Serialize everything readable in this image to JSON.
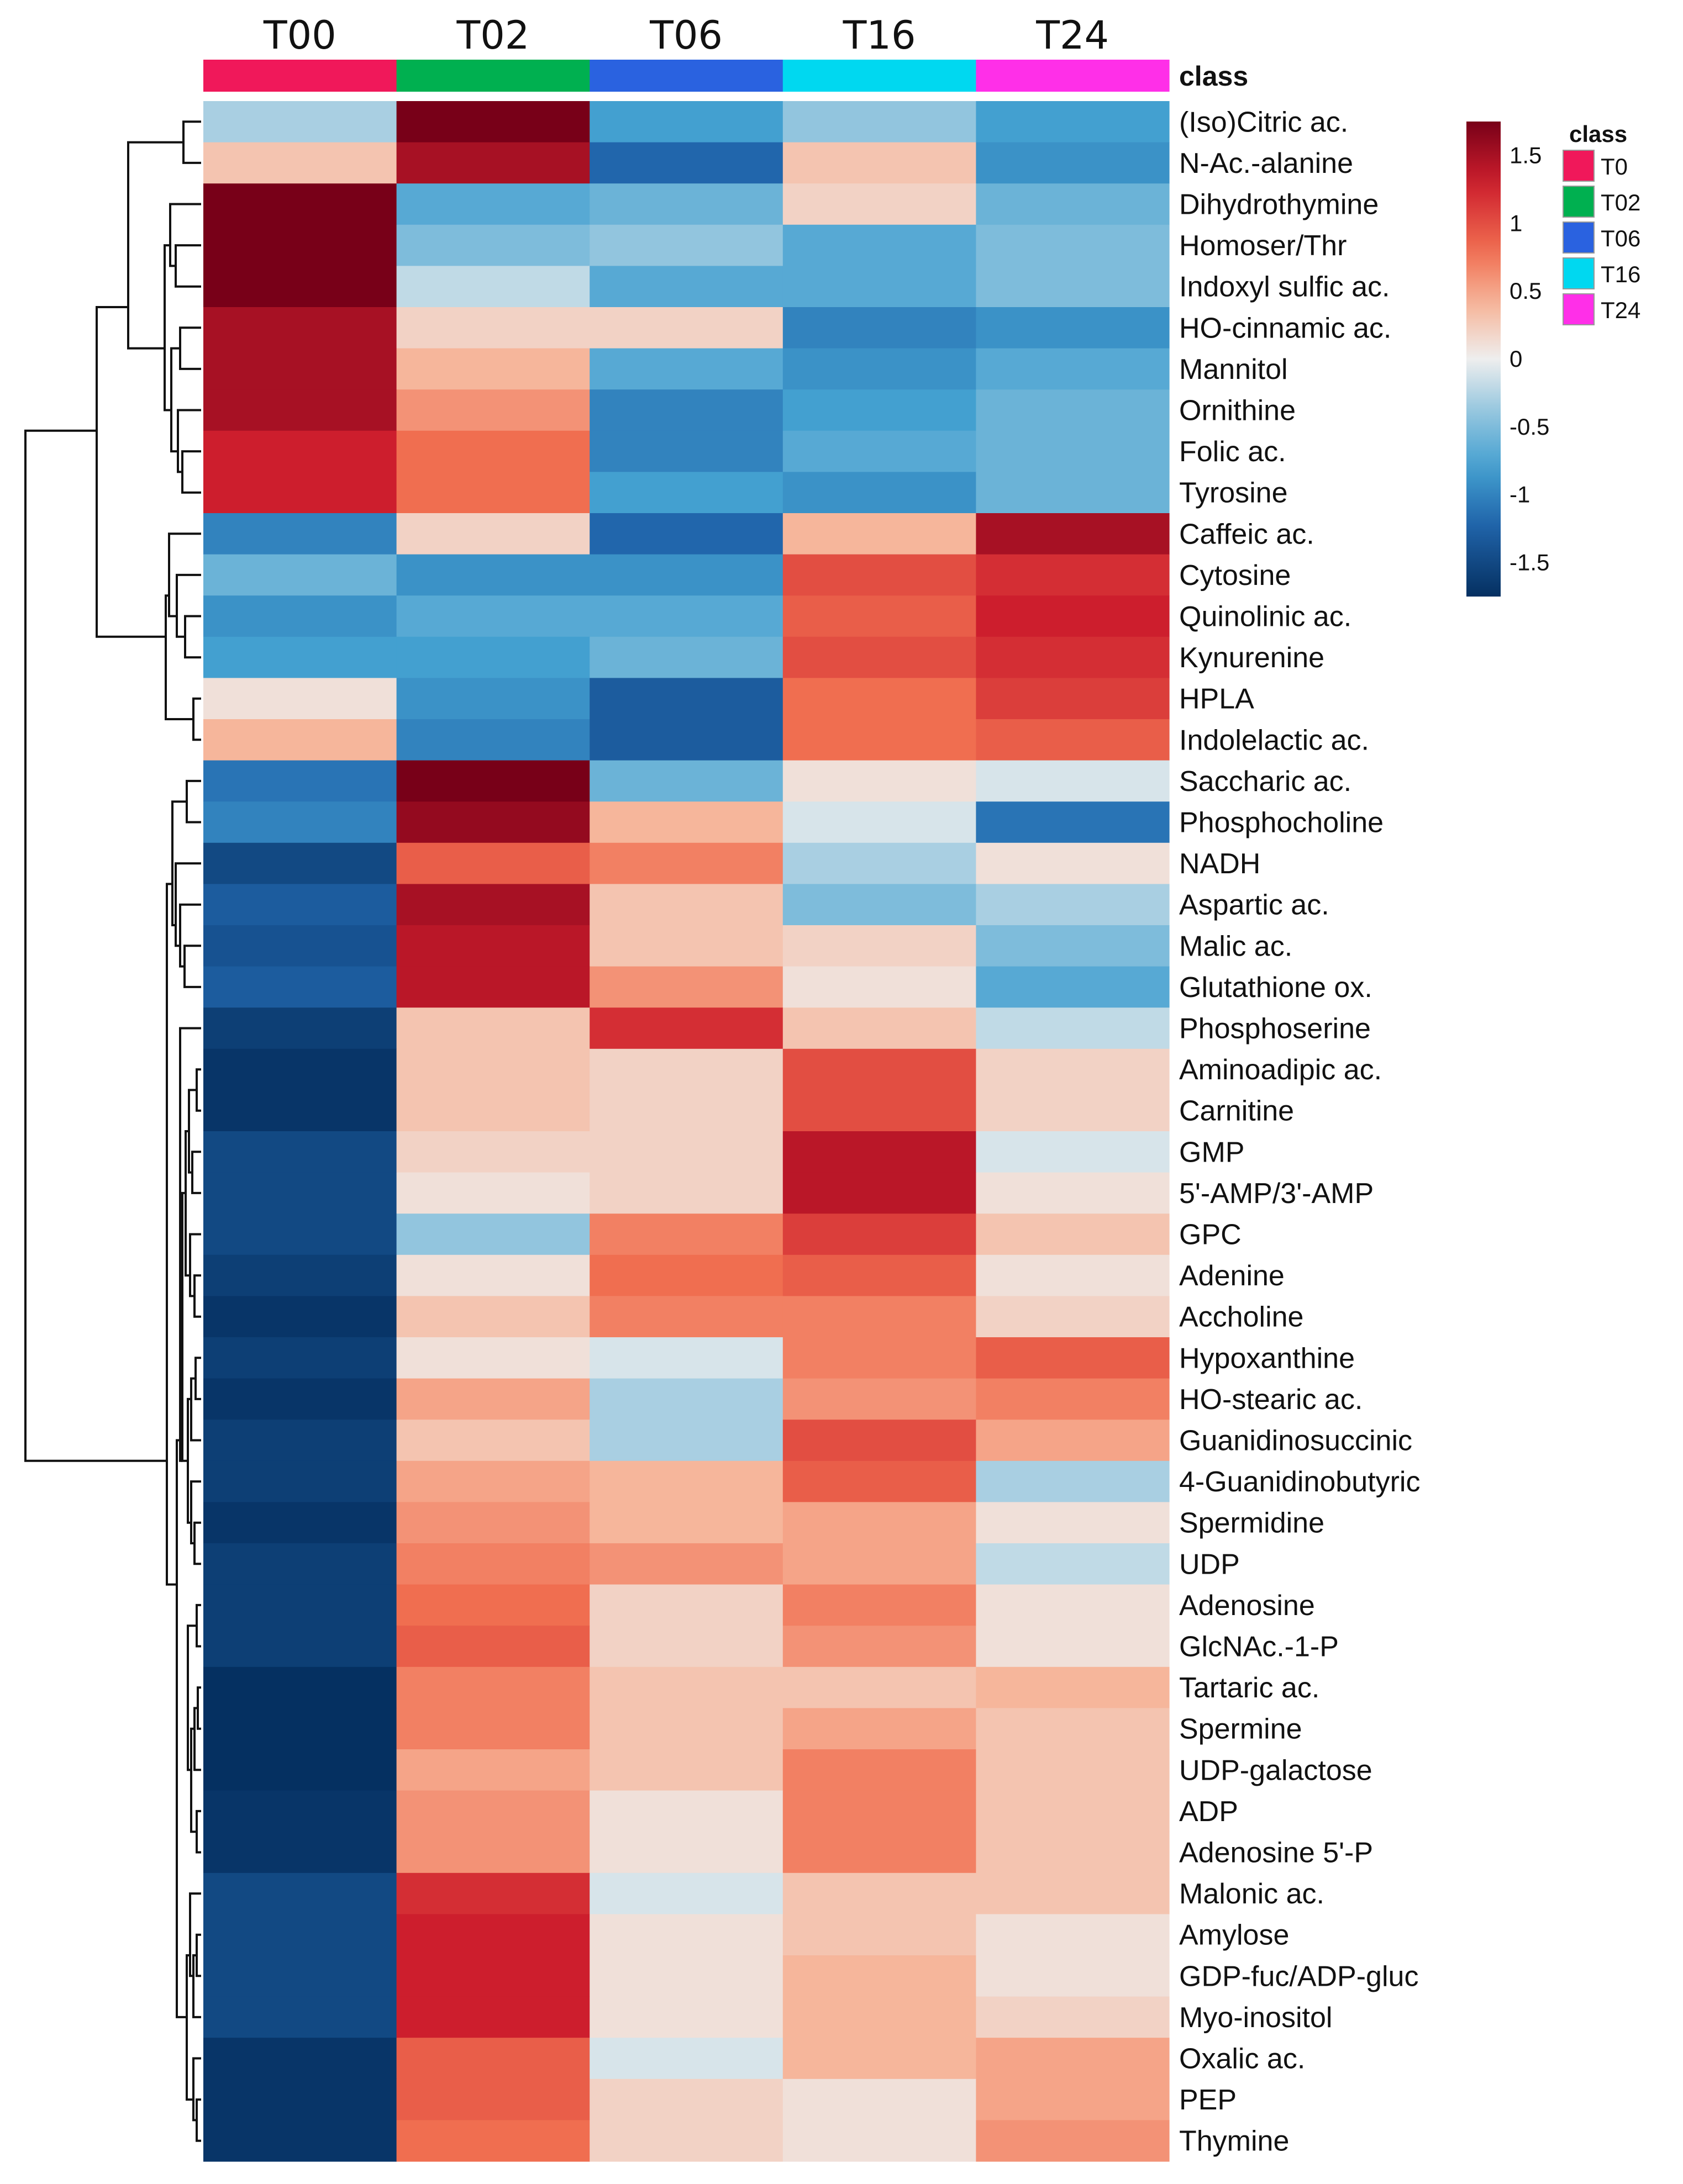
{
  "chart_data": {
    "type": "heatmap",
    "title": "",
    "columns": [
      "T00",
      "T02",
      "T06",
      "T16",
      "T24"
    ],
    "class_label": "class",
    "class_colors": [
      "#f0185a",
      "#00b050",
      "#2a62e0",
      "#00d8f0",
      "#ff2fe8"
    ],
    "rows": [
      "(Iso)Citric ac.",
      "N-Ac.-alanine",
      "Dihydrothymine",
      "Homoser/Thr",
      "Indoxyl sulfic ac.",
      "HO-cinnamic ac.",
      "Mannitol",
      "Ornithine",
      "Folic ac.",
      "Tyrosine",
      "Caffeic ac.",
      "Cytosine",
      "Quinolinic ac.",
      "Kynurenine",
      "HPLA",
      "Indolelactic ac.",
      "Saccharic ac.",
      "Phosphocholine",
      "NADH",
      "Aspartic ac.",
      "Malic ac.",
      "Glutathione ox.",
      "Phosphoserine",
      "Aminoadipic ac.",
      "Carnitine",
      "GMP",
      "5'-AMP/3'-AMP",
      "GPC",
      "Adenine",
      "Accholine",
      "Hypoxanthine",
      "HO-stearic ac.",
      "Guanidinosuccinic",
      "4-Guanidinobutyric",
      "Spermidine",
      "UDP",
      "Adenosine",
      "GlcNAc.-1-P",
      "Tartaric ac.",
      "Spermine",
      "UDP-galactose",
      "ADP",
      "Adenosine 5'-P",
      "Malonic ac.",
      "Amylose",
      "GDP-fuc/ADP-gluc",
      "Myo-inositol",
      "Oxalic ac.",
      "PEP",
      "Thymine"
    ],
    "values": [
      [
        -0.3,
        1.8,
        -0.8,
        -0.4,
        -0.8
      ],
      [
        0.3,
        1.5,
        -1.2,
        0.3,
        -0.9
      ],
      [
        1.8,
        -0.7,
        -0.6,
        0.2,
        -0.6
      ],
      [
        1.8,
        -0.5,
        -0.4,
        -0.7,
        -0.5
      ],
      [
        1.8,
        -0.2,
        -0.7,
        -0.7,
        -0.5
      ],
      [
        1.5,
        0.2,
        0.2,
        -1.0,
        -0.9
      ],
      [
        1.5,
        0.4,
        -0.7,
        -0.9,
        -0.7
      ],
      [
        1.5,
        0.6,
        -1.0,
        -0.8,
        -0.6
      ],
      [
        1.3,
        0.8,
        -1.0,
        -0.7,
        -0.6
      ],
      [
        1.3,
        0.8,
        -0.8,
        -0.9,
        -0.6
      ],
      [
        -1.0,
        0.2,
        -1.2,
        0.4,
        1.5
      ],
      [
        -0.6,
        -0.9,
        -0.9,
        1.0,
        1.2
      ],
      [
        -0.9,
        -0.7,
        -0.7,
        0.9,
        1.3
      ],
      [
        -0.8,
        -0.8,
        -0.6,
        1.0,
        1.2
      ],
      [
        0.1,
        -0.9,
        -1.3,
        0.8,
        1.1
      ],
      [
        0.4,
        -1.0,
        -1.3,
        0.8,
        0.9
      ],
      [
        -1.1,
        1.8,
        -0.6,
        0.1,
        -0.1
      ],
      [
        -1.0,
        1.6,
        0.4,
        -0.1,
        -1.1
      ],
      [
        -1.5,
        0.9,
        0.7,
        -0.3,
        0.1
      ],
      [
        -1.3,
        1.5,
        0.3,
        -0.5,
        -0.3
      ],
      [
        -1.4,
        1.4,
        0.3,
        0.2,
        -0.5
      ],
      [
        -1.3,
        1.4,
        0.6,
        0.1,
        -0.7
      ],
      [
        -1.6,
        0.3,
        1.2,
        0.3,
        -0.2
      ],
      [
        -1.7,
        0.3,
        0.2,
        1.0,
        0.2
      ],
      [
        -1.7,
        0.3,
        0.2,
        1.0,
        0.2
      ],
      [
        -1.5,
        0.2,
        0.2,
        1.4,
        -0.1
      ],
      [
        -1.5,
        0.1,
        0.2,
        1.4,
        0.1
      ],
      [
        -1.5,
        -0.4,
        0.7,
        1.1,
        0.3
      ],
      [
        -1.6,
        0.1,
        0.8,
        0.9,
        0.1
      ],
      [
        -1.7,
        0.3,
        0.7,
        0.7,
        0.2
      ],
      [
        -1.6,
        0.1,
        -0.1,
        0.7,
        0.9
      ],
      [
        -1.7,
        0.5,
        -0.3,
        0.6,
        0.7
      ],
      [
        -1.6,
        0.3,
        -0.3,
        1.0,
        0.5
      ],
      [
        -1.6,
        0.5,
        0.4,
        0.9,
        -0.3
      ],
      [
        -1.7,
        0.6,
        0.4,
        0.5,
        0.1
      ],
      [
        -1.6,
        0.7,
        0.6,
        0.5,
        -0.2
      ],
      [
        -1.6,
        0.8,
        0.2,
        0.7,
        0.1
      ],
      [
        -1.6,
        0.9,
        0.2,
        0.6,
        0.1
      ],
      [
        -1.8,
        0.7,
        0.3,
        0.3,
        0.4
      ],
      [
        -1.8,
        0.7,
        0.3,
        0.5,
        0.3
      ],
      [
        -1.8,
        0.5,
        0.3,
        0.7,
        0.3
      ],
      [
        -1.7,
        0.6,
        0.1,
        0.7,
        0.3
      ],
      [
        -1.7,
        0.6,
        0.1,
        0.7,
        0.3
      ],
      [
        -1.5,
        1.2,
        -0.1,
        0.3,
        0.3
      ],
      [
        -1.5,
        1.3,
        0.1,
        0.3,
        0.1
      ],
      [
        -1.5,
        1.3,
        0.1,
        0.4,
        0.1
      ],
      [
        -1.5,
        1.3,
        0.1,
        0.4,
        0.2
      ],
      [
        -1.7,
        0.9,
        -0.1,
        0.4,
        0.5
      ],
      [
        -1.7,
        0.9,
        0.2,
        0.1,
        0.5
      ],
      [
        -1.7,
        0.8,
        0.2,
        0.1,
        0.6
      ]
    ],
    "legend": {
      "ticks": [
        "1.5",
        "1",
        "0.5",
        "0",
        "-0.5",
        "-1",
        "-1.5"
      ],
      "tick_values": [
        1.5,
        1,
        0.5,
        0,
        -0.5,
        -1,
        -1.5
      ],
      "range": [
        -1.75,
        1.75
      ],
      "class_title": "class",
      "class_entries": [
        "T0",
        "T02",
        "T06",
        "T16",
        "T24"
      ]
    },
    "row_dendrogram": true
  }
}
